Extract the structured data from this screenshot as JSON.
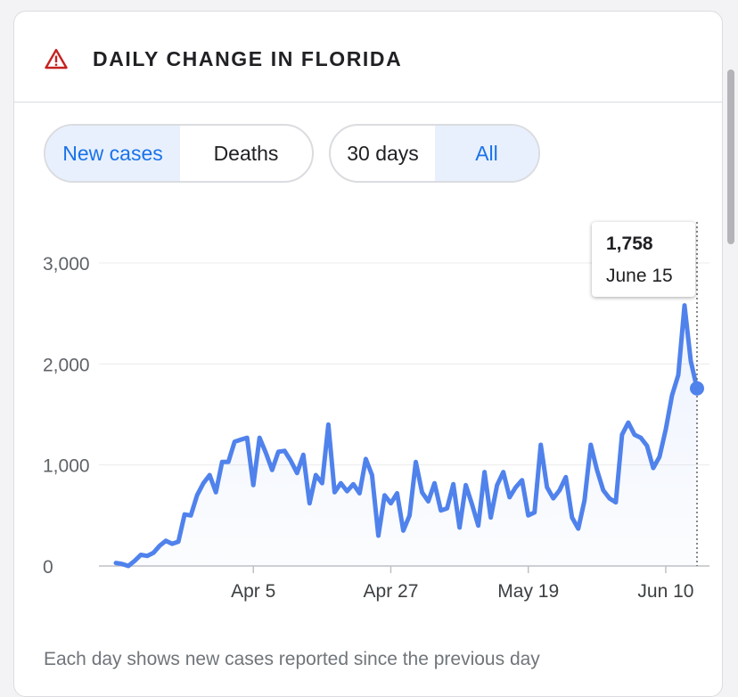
{
  "header": {
    "title": "DAILY CHANGE IN FLORIDA",
    "icon": "warning-icon"
  },
  "metric_toggle": {
    "options": [
      "New cases",
      "Deaths"
    ],
    "selected": "New cases"
  },
  "range_toggle": {
    "options": [
      "30 days",
      "All"
    ],
    "selected": "All"
  },
  "tooltip": {
    "value": "1,758",
    "date": "June 15"
  },
  "footnote": "Each day shows new cases reported since the previous day",
  "colors": {
    "line": "#5082ec",
    "accent": "#1a73e8",
    "selected_bg": "#e8f0fe",
    "warning": "#c5221f"
  },
  "chart_data": {
    "type": "area",
    "title": "DAILY CHANGE IN FLORIDA",
    "xlabel": "",
    "ylabel": "",
    "ylim": [
      0,
      3000
    ],
    "yticks": [
      0,
      1000,
      2000,
      3000
    ],
    "ytick_labels": [
      "0",
      "1,000",
      "2,000",
      "3,000"
    ],
    "x_start": "Mar 14",
    "xticks": [
      22,
      44,
      66,
      88
    ],
    "xtick_labels": [
      "Apr 5",
      "Apr 27",
      "May 19",
      "Jun 10"
    ],
    "series": [
      {
        "name": "New cases",
        "values": [
          30,
          20,
          0,
          50,
          110,
          100,
          130,
          200,
          250,
          220,
          240,
          510,
          500,
          700,
          820,
          900,
          730,
          1030,
          1030,
          1230,
          1250,
          1270,
          800,
          1270,
          1120,
          950,
          1130,
          1140,
          1040,
          920,
          1100,
          620,
          900,
          820,
          1400,
          730,
          820,
          740,
          810,
          720,
          1060,
          900,
          300,
          700,
          620,
          720,
          350,
          500,
          1030,
          730,
          640,
          820,
          550,
          570,
          810,
          380,
          800,
          610,
          400,
          930,
          480,
          800,
          930,
          680,
          780,
          850,
          500,
          530,
          1200,
          780,
          670,
          750,
          880,
          480,
          370,
          650,
          1200,
          950,
          750,
          670,
          630,
          1300,
          1420,
          1300,
          1270,
          1190,
          970,
          1080,
          1350,
          1690,
          1890,
          2580,
          2030,
          1758
        ]
      }
    ],
    "highlight": {
      "index": 93,
      "value": 1758,
      "label": "June 15"
    }
  }
}
